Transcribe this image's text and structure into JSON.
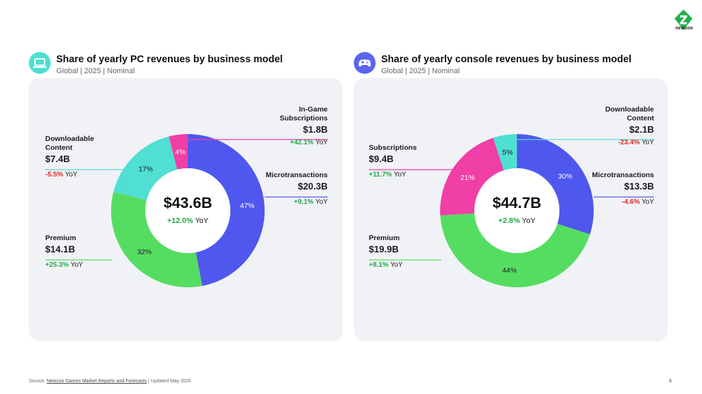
{
  "brand": {
    "name": "newzoo",
    "color": "#22b04b"
  },
  "footer": {
    "prefix": "Source: ",
    "link": "Newzoo Games Market Reports and Forecasts",
    "suffix": " | Updated May 2026",
    "page": "6"
  },
  "colors": {
    "purple": "#5057ee",
    "green": "#55dd62",
    "teal": "#4fdfd3",
    "pink": "#f03fa7",
    "pos": "#1fa84a",
    "neg": "#e02424"
  },
  "chart_data": [
    {
      "type": "pie",
      "donut": true,
      "title": "Share of yearly PC revenues by business model",
      "subtitle": "Global | 2025 | Nominal",
      "icon": "laptop-icon",
      "center": {
        "total": "$43.6B",
        "yoy": "+12.0%",
        "yoy_word": "YoY"
      },
      "slices": [
        {
          "name": "Microtransactions",
          "share": 47,
          "value": "$20.3B",
          "yoy": "+9.1%",
          "color": "#5057ee"
        },
        {
          "name": "Premium",
          "share": 32,
          "value": "$14.1B",
          "yoy": "+25.3%",
          "color": "#55dd62"
        },
        {
          "name": "Downloadable Content",
          "share": 17,
          "value": "$7.4B",
          "yoy": "-5.5%",
          "color": "#4fdfd3"
        },
        {
          "name": "In-Game Subscriptions",
          "share": 4,
          "value": "$1.8B",
          "yoy": "+42.1%",
          "color": "#f03fa7"
        }
      ]
    },
    {
      "type": "pie",
      "donut": true,
      "title": "Share of yearly console revenues by business model",
      "subtitle": "Global | 2025 | Nominal",
      "icon": "gamepad-icon",
      "center": {
        "total": "$44.7B",
        "yoy": "+2.8%",
        "yoy_word": "YoY"
      },
      "slices": [
        {
          "name": "Microtransactions",
          "share": 30,
          "value": "$13.3B",
          "yoy": "-4.6%",
          "color": "#5057ee"
        },
        {
          "name": "Premium",
          "share": 44,
          "value": "$19.9B",
          "yoy": "+8.1%",
          "color": "#55dd62"
        },
        {
          "name": "Subscriptions",
          "share": 21,
          "value": "$9.4B",
          "yoy": "+11.7%",
          "color": "#f03fa7"
        },
        {
          "name": "Downloadable Content",
          "share": 5,
          "value": "$2.1B",
          "yoy": "-23.4%",
          "color": "#4fdfd3"
        }
      ]
    }
  ]
}
